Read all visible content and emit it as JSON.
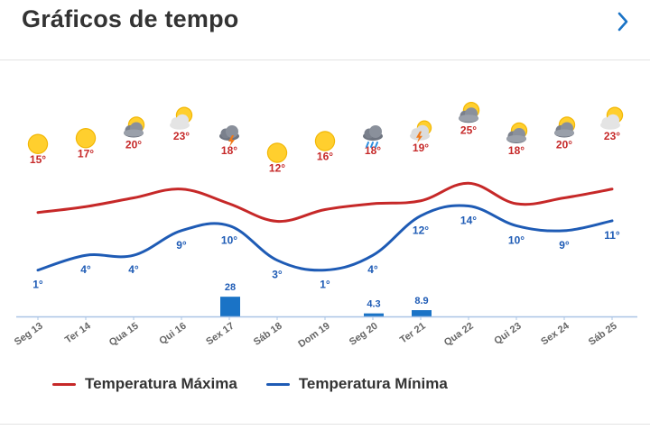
{
  "header": {
    "title": "Gráficos de tempo",
    "next_icon": "chevron-right-icon",
    "accent_color": "#1a73c6"
  },
  "chart_data": {
    "type": "line",
    "categories": [
      "Seg 13",
      "Ter 14",
      "Qua 15",
      "Qui 16",
      "Sex 17",
      "Sáb 18",
      "Dom 19",
      "Seg 20",
      "Ter 21",
      "Qua 22",
      "Qui 23",
      "Sex 24",
      "Sáb 25"
    ],
    "weather_icons": [
      "sun-icon",
      "sun-icon",
      "cloud-sun-icon",
      "sun-behind-cloud-icon",
      "thunderstorm-icon",
      "sun-icon",
      "sun-icon",
      "rain-cloud-icon",
      "sun-storm-icon",
      "cloud-sun-icon",
      "cloud-sun-icon",
      "cloud-sun-icon",
      "sun-behind-cloud-icon"
    ],
    "series": [
      {
        "name": "Temperatura Máxima",
        "color": "#c62828",
        "values": [
          15,
          17,
          20,
          23,
          18,
          12,
          16,
          18,
          19,
          25,
          18,
          20,
          23
        ],
        "labels": [
          "15°",
          "17°",
          "20°",
          "23°",
          "18°",
          "12°",
          "16°",
          "18°",
          "19°",
          "25°",
          "18°",
          "20°",
          "23°"
        ]
      },
      {
        "name": "Temperatura Mínima",
        "color": "#1e5bb5",
        "values": [
          1,
          4,
          4,
          9,
          10,
          3,
          1,
          4,
          12,
          14,
          10,
          9,
          11
        ],
        "labels": [
          "1°",
          "4°",
          "4°",
          "9°",
          "10°",
          "3°",
          "1°",
          "4°",
          "12°",
          "14°",
          "10°",
          "9°",
          "11°"
        ]
      }
    ],
    "precipitation": {
      "color": "#1a73c6",
      "values": [
        0,
        0,
        0,
        0,
        28,
        0,
        0,
        4.3,
        8.9,
        0,
        0,
        0,
        0
      ],
      "labels": [
        "",
        "",
        "",
        "",
        "28",
        "",
        "",
        "4.3",
        "8.9",
        "",
        "",
        "",
        ""
      ]
    },
    "legend_position": "bottom-left",
    "grid": false
  }
}
